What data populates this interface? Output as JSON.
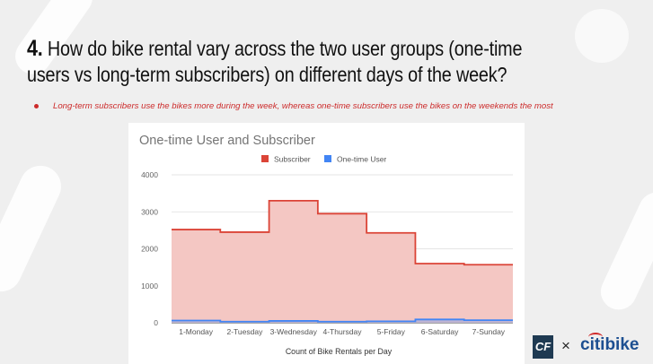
{
  "slide": {
    "number": "4.",
    "question": "How do bike rental vary across the two user groups (one-time users vs long-term subscribers) on different days of the week?",
    "bullet": "Long-term subscribers use the bikes more during the week, whereas one-time subscribers use the bikes on the weekends the most"
  },
  "colors": {
    "accent_red": "#cc2a2a",
    "subscriber": "#db4437",
    "subscriber_fill": "#f4c7c3",
    "one_time": "#4285f4"
  },
  "logo": {
    "cf": "CF",
    "x": "×",
    "citi": "citi",
    "bike": "bike"
  },
  "chart_data": {
    "type": "area",
    "title": "One-time User and Subscriber",
    "xlabel": "Count of Bike Rentals per Day",
    "ylabel": "",
    "categories": [
      "1-Monday",
      "2-Tuesday",
      "3-Wednesday",
      "4-Thursday",
      "5-Friday",
      "6-Saturday",
      "7-Sunday"
    ],
    "series": [
      {
        "name": "Subscriber",
        "values": [
          2520,
          2450,
          3300,
          2950,
          2430,
          1600,
          1570
        ]
      },
      {
        "name": "One-time User",
        "values": [
          60,
          30,
          50,
          30,
          40,
          90,
          70
        ]
      }
    ],
    "yticks": [
      0,
      1000,
      2000,
      3000,
      4000
    ],
    "ylim": [
      0,
      4000
    ],
    "step": true,
    "grid": true,
    "legend": "top"
  }
}
